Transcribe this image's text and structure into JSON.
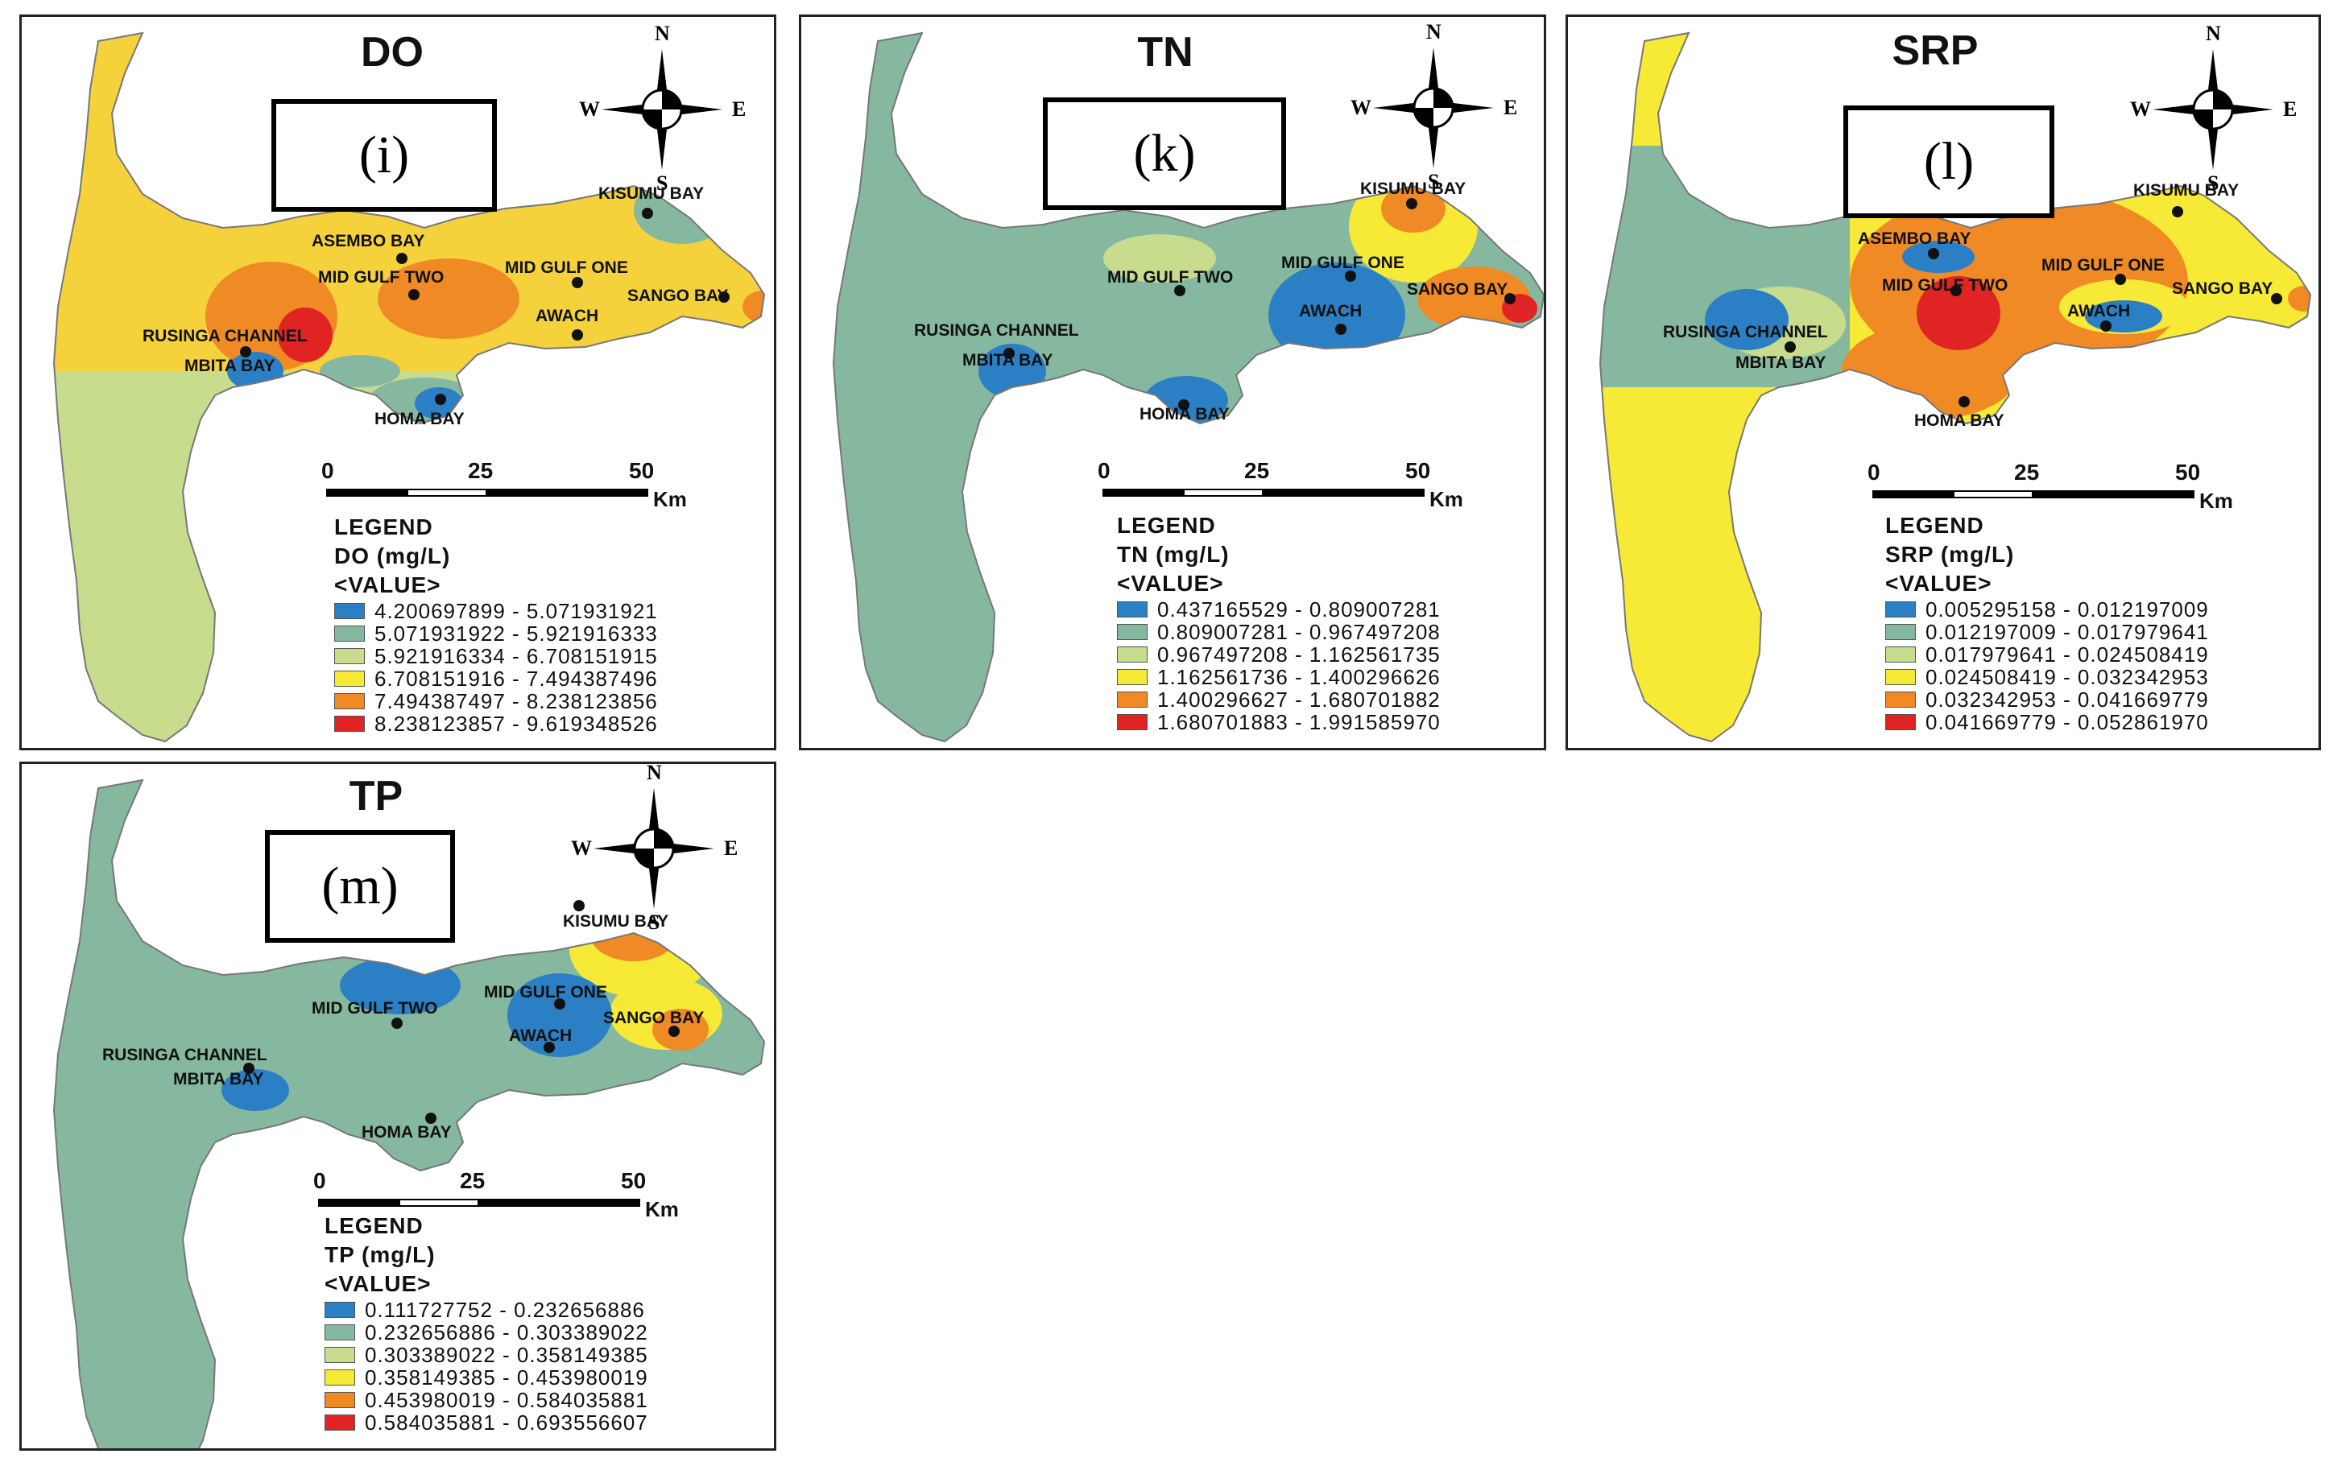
{
  "colors": {
    "blue": "#2b7fc4",
    "teal": "#86b8a0",
    "lightgreen": "#c8dc8e",
    "yellow": "#f7ea36",
    "orange": "#f08a24",
    "red": "#e02424"
  },
  "compass": {
    "n": "N",
    "s": "S",
    "e": "E",
    "w": "W"
  },
  "scale": {
    "t0": "0",
    "t25": "25",
    "t50": "50",
    "unit": "Km"
  },
  "panels": {
    "do": {
      "title": "DO",
      "label": "(i)",
      "legend": {
        "heading": "LEGEND",
        "param": "DO (mg/L)",
        "value": "<VALUE>",
        "ranges": [
          "4.200697899 - 5.071931921",
          "5.071931922 - 5.921916333",
          "5.921916334 - 6.708151915",
          "6.708151916 - 7.494387496",
          "7.494387497 - 8.238123856",
          "8.238123857 - 9.619348526"
        ]
      },
      "places": {
        "kisumu": "KISUMU BAY",
        "asembo": "ASEMBO BAY",
        "midgulftwo": "MID GULF TWO",
        "midgulfone": "MID GULF ONE",
        "sango": "SANGO BAY",
        "awach": "AWACH",
        "rusinga": "RUSINGA CHANNEL",
        "mbita": "MBITA BAY",
        "homa": "HOMA BAY"
      }
    },
    "tn": {
      "title": "TN",
      "label": "(k)",
      "legend": {
        "heading": "LEGEND",
        "param": "TN (mg/L)",
        "value": "<VALUE>",
        "ranges": [
          "0.437165529 - 0.809007281",
          "0.809007281 - 0.967497208",
          "0.967497208 - 1.162561735",
          "1.162561736 - 1.400296626",
          "1.400296627 - 1.680701882",
          "1.680701883 - 1.991585970"
        ]
      },
      "places": {
        "kisumu": "KISUMU BAY",
        "midgulftwo": "MID GULF TWO",
        "midgulfone": "MID GULF ONE",
        "sango": "SANGO BAY",
        "awach": "AWACH",
        "rusinga": "RUSINGA CHANNEL",
        "mbita": "MBITA BAY",
        "homa": "HOMA BAY"
      }
    },
    "srp": {
      "title": "SRP",
      "label": "(l)",
      "legend": {
        "heading": "LEGEND",
        "param": "SRP (mg/L)",
        "value": "<VALUE>",
        "ranges": [
          "0.005295158 - 0.012197009",
          "0.012197009 - 0.017979641",
          "0.017979641 - 0.024508419",
          "0.024508419 - 0.032342953",
          "0.032342953 - 0.041669779",
          "0.041669779 - 0.052861970"
        ]
      },
      "places": {
        "kisumu": "KISUMU BAY",
        "asembo": "ASEMBO BAY",
        "midgulftwo": "MID GULF TWO",
        "midgulfone": "MID GULF ONE",
        "sango": "SANGO BAY",
        "awach": "AWACH",
        "rusinga": "RUSINGA CHANNEL",
        "mbita": "MBITA BAY",
        "homa": "HOMA BAY"
      }
    },
    "tp": {
      "title": "TP",
      "label": "(m)",
      "legend": {
        "heading": "LEGEND",
        "param": "TP (mg/L)",
        "value": "<VALUE>",
        "ranges": [
          "0.111727752 - 0.232656886",
          "0.232656886 - 0.303389022",
          "0.303389022 - 0.358149385",
          "0.358149385 - 0.453980019",
          "0.453980019 - 0.584035881",
          "0.584035881 - 0.693556607"
        ]
      },
      "places": {
        "kisumu": "KISUMU BAY",
        "midgulftwo": "MID GULF TWO",
        "midgulfone": "MID GULF ONE",
        "sango": "SANGO BAY",
        "awach": "AWACH",
        "rusinga": "RUSINGA CHANNEL",
        "mbita": "MBITA BAY",
        "homa": "HOMA BAY"
      }
    }
  }
}
